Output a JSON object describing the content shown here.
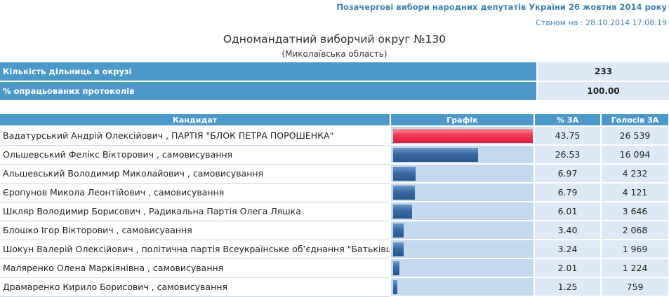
{
  "header": {
    "election_title": "Позачергові вибори народних депутатів України 26 жовтня 2014 року",
    "status_time": "Станом на : 28.10.2014 17:08:19"
  },
  "district": {
    "title": "Одномандатний виборчий округ №130",
    "region": "(Миколаївська область)"
  },
  "summary": [
    {
      "label": "Кількість дільниць в окрузі",
      "value": "233"
    },
    {
      "label": "% опрацьованих протоколів",
      "value": "100.00"
    }
  ],
  "results": {
    "columns": [
      "Кандидат",
      "Графік",
      "% ЗА",
      "Голосів ЗА"
    ],
    "colors": {
      "leader_bar": "#e8304c",
      "bar": "#3a6aa3"
    },
    "rows": [
      {
        "candidate": "Вадатурський Андрій Олексійович , ПАРТІЯ \"БЛОК ПЕТРА ПОРОШЕНКА\"",
        "pct": "43.75",
        "votes": "26 539"
      },
      {
        "candidate": "Ольшевський Фелікс Вікторович , самовисування",
        "pct": "26.53",
        "votes": "16 094"
      },
      {
        "candidate": "Альшевський Володимир Миколайович , самовисування",
        "pct": "6.97",
        "votes": "4 232"
      },
      {
        "candidate": "Єропунов Микола Леонтійович , самовисування",
        "pct": "6.79",
        "votes": "4 121"
      },
      {
        "candidate": "Шкляр Володимир Борисович , Радикальна Партія Олега Ляшка",
        "pct": "6.01",
        "votes": "3 646"
      },
      {
        "candidate": "Блошко Ігор Вікторович , самовисування",
        "pct": "3.40",
        "votes": "2 068"
      },
      {
        "candidate": "Шокун Валерій Олексійович , політична партія Всеукраїнське об’єднання \"Батьківщина\"",
        "pct": "3.24",
        "votes": "1 969"
      },
      {
        "candidate": "Маляренко Олена Маркіянівна , самовисування",
        "pct": "2.01",
        "votes": "1 224"
      },
      {
        "candidate": "Драмаренко Кирило Борисович , самовисування",
        "pct": "1.25",
        "votes": "759"
      }
    ]
  }
}
